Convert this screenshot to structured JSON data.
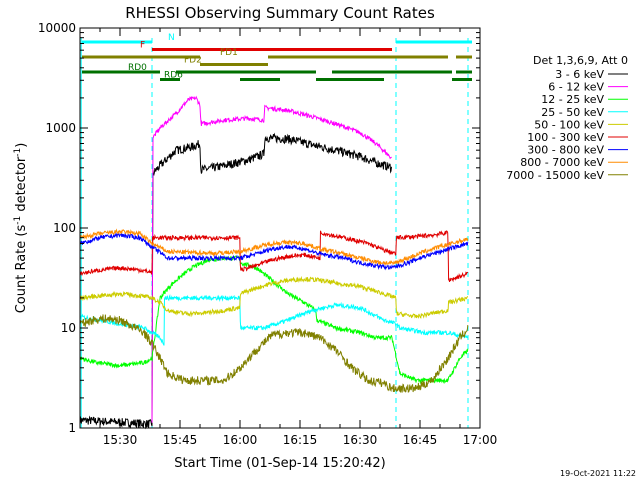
{
  "chart_data": {
    "type": "line",
    "title": "RHESSI Observing Summary Count Rates",
    "xlabel": "Start Time (01-Sep-14 15:20:42)",
    "ylabel": "Count Rate (s",
    "ylabel_sup1": "-1",
    "ylabel_mid": " detector",
    "ylabel_sup2": "-1",
    "ylabel_end": ")",
    "y_scale": "log",
    "ylim": [
      1,
      10000
    ],
    "xlim_minutes_after_15_20": [
      0,
      100
    ],
    "x_ticks": [
      {
        "label": "15:30",
        "minute": 10
      },
      {
        "label": "15:45",
        "minute": 25
      },
      {
        "label": "16:00",
        "minute": 40
      },
      {
        "label": "16:15",
        "minute": 55
      },
      {
        "label": "16:30",
        "minute": 70
      },
      {
        "label": "16:45",
        "minute": 85
      },
      {
        "label": "17:00",
        "minute": 100
      }
    ],
    "y_ticks": [
      {
        "label": "1",
        "value": 1
      },
      {
        "label": "10",
        "value": 10
      },
      {
        "label": "100",
        "value": 100
      },
      {
        "label": "1000",
        "value": 1000
      },
      {
        "label": "10000",
        "value": 10000
      }
    ],
    "legend_title": "Det 1,3,6,9, Att 0",
    "legend_placement": "right",
    "timestamp": "19-Oct-2021 11:22",
    "flags": [
      {
        "label": "N",
        "color": "#00ffff",
        "minute_start": 0.5,
        "minute_end": 98,
        "gap": [
          18,
          79
        ],
        "y_frac": 0.0
      },
      {
        "label": "F",
        "color": "#e00000",
        "minute_start": 18,
        "minute_end": 78,
        "y_frac": 0.25
      },
      {
        "label": "FD1",
        "color": "#808000",
        "minute_start": 0.5,
        "minute_end": 98,
        "gaps": [
          [
            30,
            47
          ],
          [
            92,
            94
          ]
        ],
        "y_frac": 0.5
      },
      {
        "label": "FD2",
        "color": "#808000",
        "minute_start": 30,
        "minute_end": 47,
        "y_frac": 0.75
      },
      {
        "label": "RD0",
        "color": "#007000",
        "minute_start": 0.5,
        "minute_end": 98,
        "gaps": [
          [
            20,
            24
          ],
          [
            59,
            63
          ],
          [
            93,
            94
          ]
        ],
        "y_frac": 1.0
      },
      {
        "label": "RD6",
        "color": "#007000",
        "minute_start": 20,
        "minute_end": 98,
        "gaps": [
          [
            25,
            40
          ],
          [
            50,
            59
          ],
          [
            76,
            93
          ]
        ],
        "y_frac": 1.25
      }
    ],
    "attenuator_lines_minutes": [
      0.3,
      18,
      79,
      97
    ],
    "series": [
      {
        "name": "3 - 6 keV",
        "color": "#000000",
        "x": [
          0,
          18,
          18.2,
          20,
          24,
          28,
          30,
          30.2,
          36,
          42,
          46,
          46.2,
          52,
          58,
          64,
          70,
          74,
          77.9
        ],
        "y": [
          1.2,
          1.1,
          350,
          420,
          600,
          650,
          700,
          380,
          420,
          480,
          550,
          800,
          780,
          680,
          600,
          520,
          450,
          400
        ]
      },
      {
        "name": "6 - 12 keV",
        "color": "#ff00ff",
        "x": [
          18,
          18.2,
          20,
          24,
          27,
          29,
          30,
          30.2,
          36,
          42,
          46,
          46.2,
          52,
          58,
          64,
          70,
          74,
          77.9
        ],
        "y": [
          1.1,
          800,
          1000,
          1400,
          1900,
          2000,
          1700,
          1100,
          1200,
          1250,
          1200,
          1600,
          1500,
          1300,
          1100,
          900,
          700,
          500
        ]
      },
      {
        "name": "12 - 25 keV",
        "color": "#00ff00",
        "x": [
          0,
          4,
          10,
          16,
          18,
          20,
          22,
          24,
          28,
          32,
          36,
          40,
          40.1,
          44,
          48,
          52,
          56,
          59,
          59.1,
          64,
          70,
          74,
          78,
          80,
          84,
          90,
          92,
          95,
          97
        ],
        "y": [
          5,
          4.5,
          4.2,
          4.5,
          5,
          20,
          25,
          30,
          40,
          48,
          50,
          50,
          45,
          40,
          30,
          22,
          18,
          15,
          12,
          10,
          9,
          8,
          8,
          3.5,
          3,
          3,
          3,
          5,
          6
        ]
      },
      {
        "name": "25 - 50 keV",
        "color": "#00ffff",
        "x": [
          0,
          5,
          10,
          16,
          18,
          20,
          21,
          21.1,
          26,
          32,
          40,
          40.1,
          46,
          52,
          58,
          64,
          70,
          76,
          79,
          80,
          86,
          92,
          97
        ],
        "y": [
          13,
          12,
          11,
          10,
          9,
          8,
          7,
          20,
          20,
          20,
          20,
          10,
          10,
          12,
          15,
          17,
          16,
          12,
          11,
          10,
          9,
          9,
          8
        ]
      },
      {
        "name": "50 - 100 keV",
        "color": "#cccc00",
        "x": [
          0,
          5,
          10,
          15,
          18,
          20,
          22,
          26,
          30,
          36,
          40,
          40.1,
          44,
          48,
          52,
          56,
          60,
          64,
          70,
          76,
          79,
          79.1,
          84,
          88,
          92,
          92.1,
          97
        ],
        "y": [
          20,
          21,
          22,
          21,
          20,
          18,
          15,
          14,
          14,
          15,
          16,
          22,
          25,
          28,
          30,
          31,
          30,
          28,
          26,
          22,
          20,
          14,
          13,
          14,
          15,
          18,
          20
        ]
      },
      {
        "name": "100 - 300 keV",
        "color": "#e00000",
        "x": [
          0,
          5,
          10,
          15,
          18,
          18.1,
          24,
          30,
          36,
          40,
          40.1,
          44,
          48,
          52,
          56,
          60,
          60.1,
          66,
          72,
          76,
          79,
          79.1,
          84,
          88,
          92,
          92.1,
          97
        ],
        "y": [
          35,
          38,
          40,
          38,
          36,
          80,
          80,
          80,
          80,
          80,
          38,
          42,
          48,
          52,
          54,
          50,
          90,
          80,
          70,
          60,
          55,
          80,
          82,
          85,
          90,
          30,
          35
        ]
      },
      {
        "name": "300 - 800 keV",
        "color": "#0000ff",
        "x": [
          0,
          5,
          10,
          15,
          18,
          22,
          28,
          34,
          40,
          44,
          48,
          52,
          56,
          60,
          66,
          70,
          74,
          78,
          82,
          86,
          90,
          94,
          97
        ],
        "y": [
          70,
          80,
          85,
          80,
          65,
          50,
          50,
          50,
          50,
          55,
          62,
          65,
          62,
          55,
          50,
          45,
          42,
          40,
          45,
          52,
          58,
          65,
          70
        ]
      },
      {
        "name": "800 - 7000 keV",
        "color": "#ff8c00",
        "x": [
          0,
          5,
          10,
          15,
          18,
          22,
          28,
          34,
          40,
          44,
          48,
          52,
          56,
          60,
          66,
          70,
          74,
          78,
          82,
          86,
          90,
          94,
          97
        ],
        "y": [
          80,
          88,
          92,
          88,
          70,
          58,
          57,
          56,
          58,
          64,
          70,
          72,
          70,
          62,
          55,
          50,
          46,
          44,
          50,
          58,
          65,
          72,
          78
        ]
      },
      {
        "name": "7000 - 15000 keV",
        "color": "#808000",
        "x": [
          0,
          3,
          6,
          10,
          14,
          16,
          18,
          20,
          22,
          26,
          30,
          36,
          40,
          44,
          48,
          52,
          56,
          60,
          64,
          68,
          72,
          76,
          78,
          79.5,
          84,
          88,
          92,
          95,
          97
        ],
        "y": [
          11,
          12,
          12.5,
          12,
          10,
          9,
          7,
          5,
          3.5,
          3,
          3,
          3,
          4,
          6,
          8.5,
          9,
          9,
          8,
          6,
          4,
          3,
          2.8,
          2.5,
          2.5,
          2.5,
          3,
          5,
          8,
          10
        ]
      }
    ]
  }
}
